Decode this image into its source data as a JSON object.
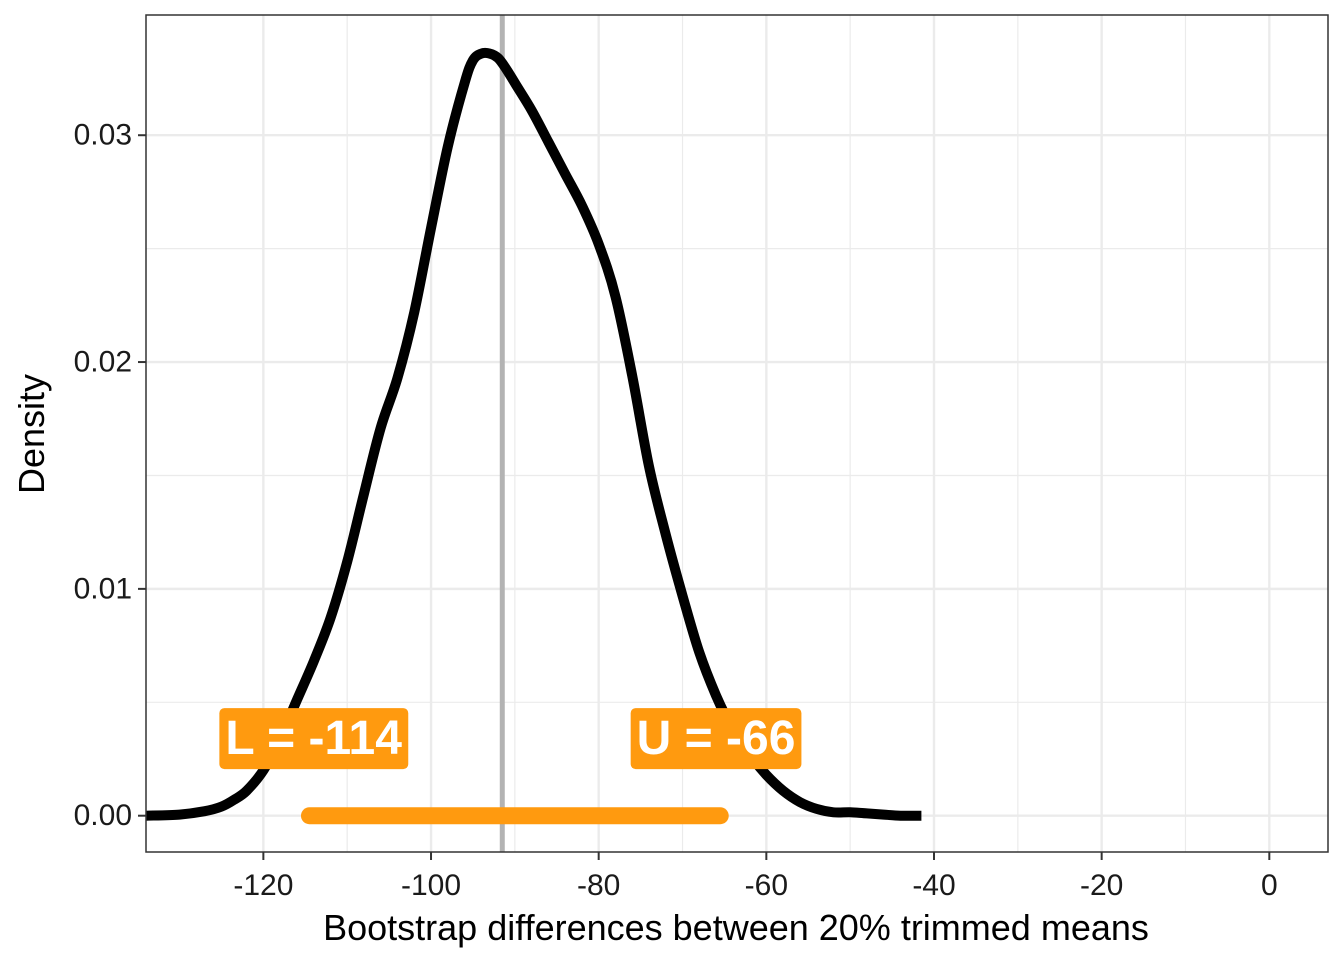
{
  "colors": {
    "density_line": "#000000",
    "ci_color": "#FF9A0F",
    "ci_text": "#FFFFFF",
    "mean_line": "#B3B3B3",
    "grid": "#EBEBEB",
    "panel_border": "#333333"
  },
  "chart_data": {
    "type": "line",
    "title": "",
    "xlabel": "Bootstrap differences between 20% trimmed means",
    "ylabel": "Density",
    "xlim": [
      -134,
      7
    ],
    "ylim": [
      -0.0016,
      0.0353
    ],
    "xticks": [
      -120,
      -100,
      -80,
      -60,
      -40,
      -20,
      0
    ],
    "xtick_labels": [
      "-120",
      "-100",
      "-80",
      "-60",
      "-40",
      "-20",
      "0"
    ],
    "yticks": [
      0,
      0.01,
      0.02,
      0.03
    ],
    "ytick_labels": [
      "0.00",
      "0.01",
      "0.02",
      "0.03"
    ],
    "grid": true,
    "series": [
      {
        "x": [
          -134,
          -130,
          -127,
          -125,
          -123.5,
          -122,
          -120,
          -118,
          -116,
          -114,
          -112,
          -110,
          -108,
          -106,
          -104,
          -102,
          -100,
          -98,
          -96,
          -95,
          -94,
          -93,
          -92,
          -91,
          -90,
          -88,
          -86,
          -84,
          -82,
          -80,
          -78,
          -76,
          -74,
          -72,
          -70,
          -68,
          -66,
          -64,
          -62,
          -60,
          -58,
          -56,
          -54,
          -52,
          -50,
          -48,
          -46,
          -44,
          -41.5
        ],
        "y": [
          0,
          5e-05,
          0.0002,
          0.0004,
          0.0007,
          0.0011,
          0.002,
          0.0034,
          0.0051,
          0.0068,
          0.0087,
          0.0112,
          0.0142,
          0.0171,
          0.0193,
          0.0222,
          0.0259,
          0.0295,
          0.0323,
          0.0333,
          0.0336,
          0.0336,
          0.0334,
          0.0329,
          0.0323,
          0.0311,
          0.0297,
          0.0283,
          0.0269,
          0.0252,
          0.0229,
          0.0194,
          0.0154,
          0.0124,
          0.0097,
          0.0072,
          0.0053,
          0.0038,
          0.0027,
          0.0018,
          0.0011,
          0.0006,
          0.0003,
          0.00015,
          0.00015,
          0.0001,
          5e-05,
          0,
          0
        ]
      }
    ],
    "vline": -91.5,
    "ci": {
      "lower": -114.5,
      "upper": -65.5,
      "y": 0
    },
    "annotations": [
      {
        "text": "L =  -114",
        "x": -114,
        "y": 0.0034
      },
      {
        "text": "U =  -66",
        "x": -66,
        "y": 0.0034
      }
    ]
  }
}
